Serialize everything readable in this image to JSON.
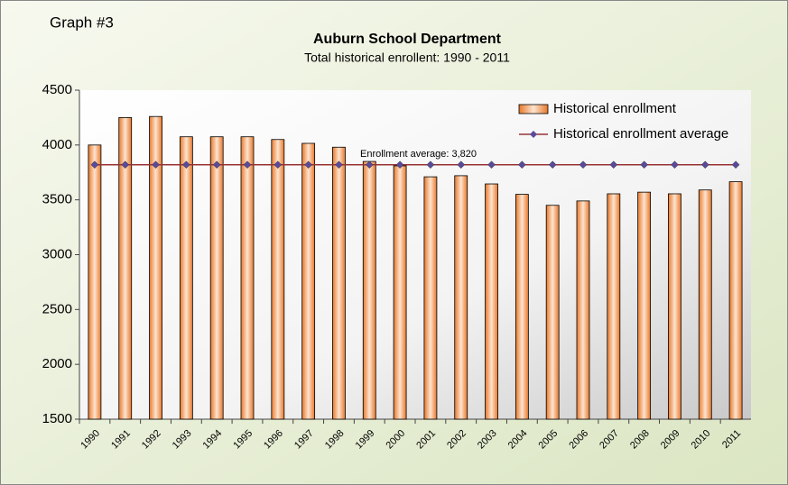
{
  "chart_data": {
    "type": "bar",
    "label": "Graph #3",
    "title": "Auburn School Department",
    "subtitle": "Total historical enrollent: 1990 - 2011",
    "annotation": "Enrollment average: 3,820",
    "categories": [
      "1990",
      "1991",
      "1992",
      "1993",
      "1994",
      "1995",
      "1996",
      "1997",
      "1998",
      "1999",
      "2000",
      "2001",
      "2002",
      "2003",
      "2004",
      "2005",
      "2006",
      "2007",
      "2008",
      "2009",
      "2010",
      "2011"
    ],
    "series": [
      {
        "name": "Historical enrollment",
        "type": "bar",
        "color": "#e8782a",
        "values": [
          4000,
          4250,
          4260,
          4075,
          4075,
          4075,
          4050,
          4015,
          3980,
          3850,
          3810,
          3710,
          3720,
          3645,
          3550,
          3450,
          3490,
          3555,
          3570,
          3555,
          3590,
          3665
        ]
      },
      {
        "name": "Historical enrollment average",
        "type": "line",
        "color": "#993333",
        "marker_color": "#5a4a9c",
        "values": [
          3820,
          3820,
          3820,
          3820,
          3820,
          3820,
          3820,
          3820,
          3820,
          3820,
          3820,
          3820,
          3820,
          3820,
          3820,
          3820,
          3820,
          3820,
          3820,
          3820,
          3820,
          3820
        ]
      }
    ],
    "ylim": [
      1500,
      4500
    ],
    "yticks": [
      1500,
      2000,
      2500,
      3000,
      3500,
      4000,
      4500
    ],
    "legend": "top-right"
  }
}
